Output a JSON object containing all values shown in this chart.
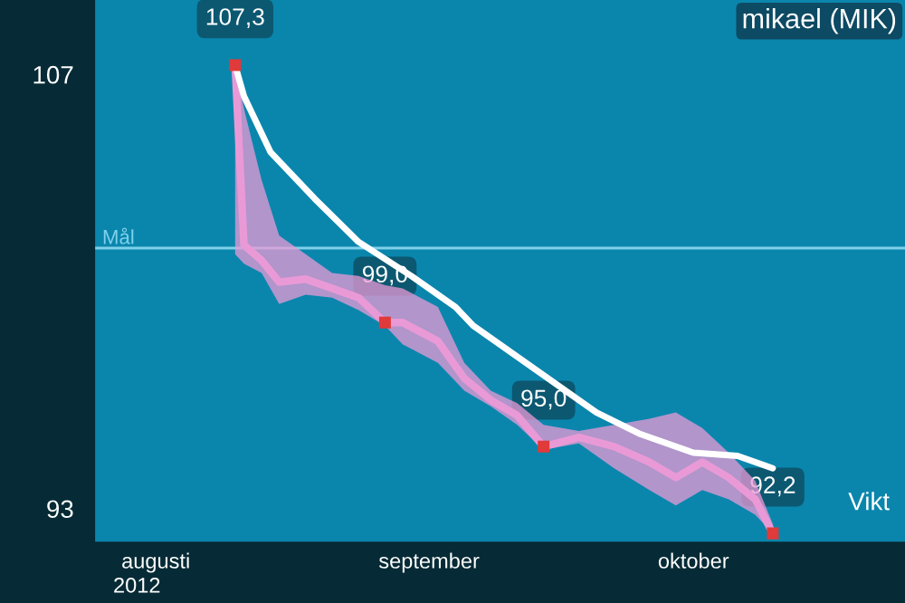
{
  "chart_data": {
    "type": "line",
    "title": "mikael (MIK)",
    "xlim": [
      "2012-07-25",
      "2012-10-25"
    ],
    "xticks": [
      {
        "value": "2012-08-01",
        "label": "augusti"
      },
      {
        "value": "2012-09-01",
        "label": "september"
      },
      {
        "value": "2012-10-01",
        "label": "oktober"
      }
    ],
    "ylim": [
      91.9,
      109.4
    ],
    "yticks": [
      93,
      107
    ],
    "ref_lines": [
      {
        "axis": "y",
        "value": 101.4,
        "label": "Mål",
        "color": "#7fd0ea"
      }
    ],
    "annotations": [
      "2012"
    ],
    "series": [
      {
        "color": "#e99ad6",
        "x": [
          "2012-08-10",
          "2012-08-11",
          "2012-08-13",
          "2012-08-15",
          "2012-08-18",
          "2012-08-21",
          "2012-08-24",
          "2012-08-27",
          "2012-08-29",
          "2012-09-02",
          "2012-09-05",
          "2012-09-08",
          "2012-09-11",
          "2012-09-14",
          "2012-09-18",
          "2012-09-22",
          "2012-09-26",
          "2012-09-29",
          "2012-10-02",
          "2012-10-05",
          "2012-10-08",
          "2012-10-10"
        ],
        "values": [
          107.3,
          101.5,
          101.0,
          100.3,
          100.4,
          100.1,
          99.8,
          99.0,
          99.0,
          98.4,
          97.2,
          96.5,
          96.0,
          95.0,
          95.3,
          95.0,
          94.5,
          94.0,
          94.5,
          94.0,
          93.3,
          92.2
        ],
        "upper": [
          107.3,
          105.9,
          103.6,
          101.8,
          101.2,
          100.6,
          100.5,
          100.2,
          100.1,
          99.5,
          97.7,
          96.8,
          96.4,
          95.7,
          95.5,
          95.7,
          95.9,
          96.1,
          95.6,
          94.8,
          93.9,
          92.5
        ],
        "lower": [
          101.2,
          100.9,
          100.6,
          99.6,
          99.9,
          99.8,
          99.4,
          98.9,
          98.3,
          97.7,
          96.8,
          96.3,
          95.7,
          94.9,
          95.1,
          94.3,
          93.6,
          93.1,
          93.6,
          93.3,
          92.8,
          92.2
        ]
      },
      {
        "name": "Vikt",
        "color": "#ffffff",
        "x": [
          "2012-08-10",
          "2012-08-11",
          "2012-08-14",
          "2012-08-19",
          "2012-08-24",
          "2012-08-30",
          "2012-09-04",
          "2012-09-06",
          "2012-09-13",
          "2012-09-20",
          "2012-09-25",
          "2012-10-01",
          "2012-10-06",
          "2012-10-10"
        ],
        "values": [
          107.3,
          106.3,
          104.5,
          103.0,
          101.6,
          100.5,
          99.5,
          98.9,
          97.5,
          96.1,
          95.4,
          94.8,
          94.7,
          94.3
        ]
      },
      {
        "type": "scatter",
        "color": "#e03a3a",
        "x": [
          "2012-08-10",
          "2012-08-27",
          "2012-09-14",
          "2012-10-10"
        ],
        "values": [
          107.3,
          99.0,
          95.0,
          92.2
        ],
        "value_labels": [
          "107,3",
          "99,0",
          "95,0",
          "92,2"
        ]
      }
    ]
  }
}
